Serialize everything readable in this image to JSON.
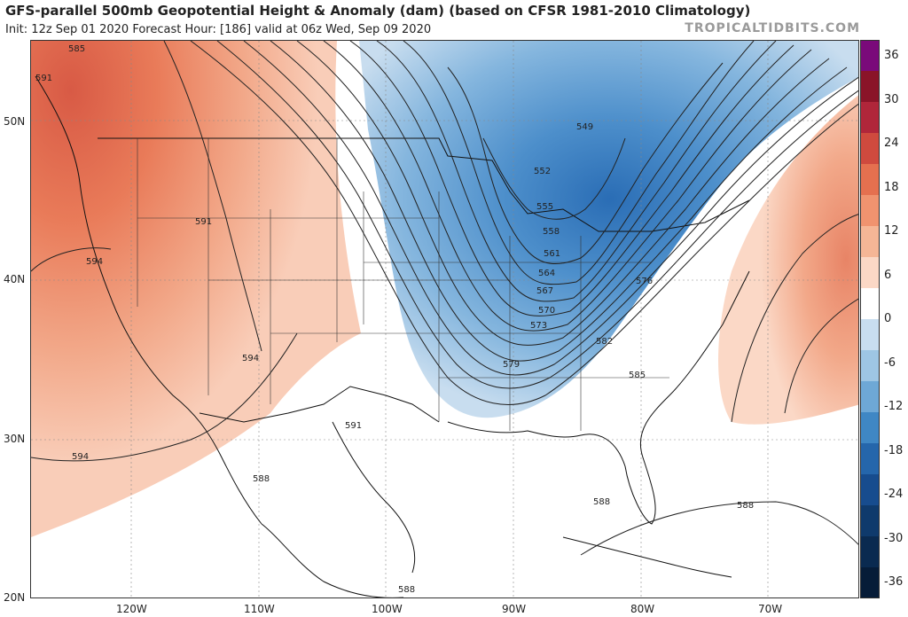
{
  "header": {
    "title": "GFS-parallel 500mb Geopotential Height & Anomaly (dam) (based on CFSR 1981-2010 Climatology)",
    "subtitle": "Init: 12z Sep 01 2020   Forecast Hour: [186]   valid at 06z Wed, Sep 09 2020",
    "brand": "TROPICALTIDBITS.COM"
  },
  "map": {
    "lat_labels": [
      "50N",
      "40N",
      "30N",
      "20N"
    ],
    "lon_labels": [
      "120W",
      "110W",
      "100W",
      "90W",
      "80W",
      "70W"
    ],
    "contour_labels": [
      "585",
      "549",
      "552",
      "555",
      "558",
      "561",
      "564",
      "567",
      "570",
      "573",
      "576",
      "579",
      "582",
      "585",
      "591",
      "594",
      "594",
      "591",
      "594",
      "588",
      "588",
      "588",
      "591",
      "588"
    ],
    "colors": {
      "ridge": "#e97b59",
      "trough": "#3b7fc0",
      "neutral": "#ffffff"
    }
  },
  "colorbar": {
    "labels": [
      "36",
      "30",
      "24",
      "18",
      "12",
      "6",
      "0",
      "-6",
      "-12",
      "-18",
      "-24",
      "-30",
      "-36"
    ],
    "colors": [
      "#7a0a7a",
      "#8a1428",
      "#b0263a",
      "#cf4a3e",
      "#e5704f",
      "#f0936f",
      "#f5b696",
      "#fbd8c6",
      "#ffffff",
      "#c8ddef",
      "#9ec6e4",
      "#6ea8d6",
      "#3f87c4",
      "#2566ab",
      "#174c8e",
      "#0f3a6c",
      "#0a2a50",
      "#061c38"
    ]
  }
}
